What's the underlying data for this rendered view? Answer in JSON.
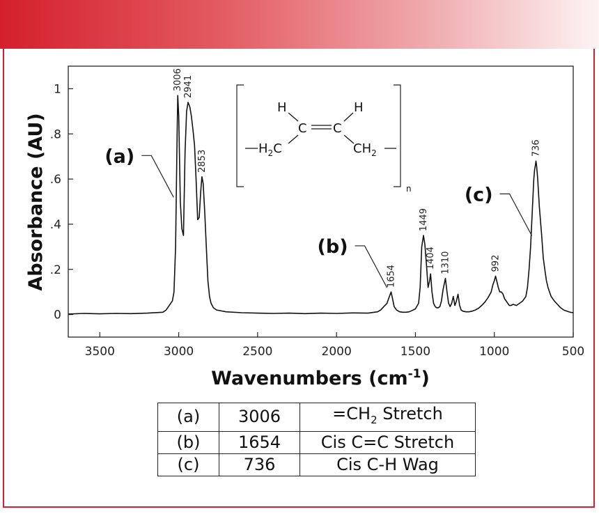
{
  "chart_data": {
    "type": "line",
    "xlabel_main": "Wavenumbers (cm",
    "xlabel_sup": "-1",
    "xlabel_close": ")",
    "ylabel": "Absorbance (AU)",
    "xlim": [
      3700,
      500
    ],
    "ylim": [
      -0.1,
      1.1
    ],
    "x_reversed": true,
    "x_ticks": [
      3500,
      3000,
      2500,
      2000,
      1500,
      1000,
      500
    ],
    "y_ticks": [
      {
        "v": 0,
        "label": "0"
      },
      {
        "v": 0.2,
        "label": ".2"
      },
      {
        "v": 0.4,
        "label": ".4"
      },
      {
        "v": 0.6,
        "label": ".6"
      },
      {
        "v": 0.8,
        "label": ".8"
      },
      {
        "v": 1.0,
        "label": "1"
      }
    ],
    "grid": false,
    "series": [
      {
        "color": "#111111",
        "x": [
          3700,
          3600,
          3500,
          3400,
          3300,
          3200,
          3100,
          3080,
          3060,
          3040,
          3030,
          3020,
          3010,
          3006,
          3000,
          2990,
          2980,
          2970,
          2960,
          2950,
          2941,
          2930,
          2920,
          2910,
          2900,
          2890,
          2880,
          2870,
          2860,
          2853,
          2845,
          2835,
          2825,
          2815,
          2805,
          2795,
          2780,
          2760,
          2700,
          2600,
          2500,
          2400,
          2300,
          2200,
          2100,
          2000,
          1900,
          1800,
          1740,
          1720,
          1700,
          1680,
          1670,
          1654,
          1645,
          1635,
          1620,
          1600,
          1580,
          1560,
          1540,
          1520,
          1500,
          1480,
          1470,
          1460,
          1449,
          1440,
          1430,
          1420,
          1410,
          1404,
          1395,
          1385,
          1375,
          1365,
          1355,
          1345,
          1335,
          1325,
          1310,
          1300,
          1290,
          1280,
          1270,
          1260,
          1250,
          1240,
          1230,
          1220,
          1210,
          1200,
          1180,
          1160,
          1140,
          1120,
          1100,
          1080,
          1060,
          1040,
          1020,
          1010,
          1000,
          992,
          985,
          975,
          965,
          955,
          945,
          935,
          925,
          915,
          905,
          895,
          880,
          860,
          840,
          820,
          800,
          790,
          780,
          770,
          760,
          750,
          745,
          740,
          736,
          732,
          725,
          715,
          700,
          690,
          680,
          670,
          660,
          650,
          640,
          620,
          600,
          580,
          560,
          540,
          520,
          500
        ],
        "y": [
          0.002,
          0.005,
          0.003,
          0.005,
          0.004,
          0.006,
          0.01,
          0.02,
          0.04,
          0.06,
          0.1,
          0.3,
          0.8,
          0.97,
          0.88,
          0.5,
          0.38,
          0.35,
          0.72,
          0.9,
          0.94,
          0.92,
          0.88,
          0.82,
          0.75,
          0.6,
          0.42,
          0.43,
          0.55,
          0.61,
          0.58,
          0.45,
          0.3,
          0.15,
          0.08,
          0.05,
          0.03,
          0.02,
          0.012,
          0.008,
          0.006,
          0.005,
          0.006,
          0.004,
          0.006,
          0.005,
          0.007,
          0.006,
          0.012,
          0.02,
          0.035,
          0.05,
          0.07,
          0.1,
          0.07,
          0.035,
          0.02,
          0.012,
          0.01,
          0.01,
          0.012,
          0.018,
          0.025,
          0.05,
          0.12,
          0.3,
          0.35,
          0.31,
          0.22,
          0.12,
          0.15,
          0.18,
          0.1,
          0.05,
          0.035,
          0.03,
          0.03,
          0.035,
          0.06,
          0.11,
          0.16,
          0.1,
          0.05,
          0.035,
          0.05,
          0.08,
          0.04,
          0.06,
          0.09,
          0.04,
          0.02,
          0.015,
          0.012,
          0.012,
          0.015,
          0.02,
          0.028,
          0.04,
          0.055,
          0.075,
          0.1,
          0.13,
          0.15,
          0.17,
          0.15,
          0.12,
          0.1,
          0.1,
          0.09,
          0.07,
          0.06,
          0.05,
          0.04,
          0.04,
          0.045,
          0.04,
          0.05,
          0.06,
          0.08,
          0.12,
          0.2,
          0.3,
          0.45,
          0.6,
          0.64,
          0.66,
          0.68,
          0.66,
          0.6,
          0.48,
          0.35,
          0.25,
          0.2,
          0.15,
          0.12,
          0.1,
          0.08,
          0.06,
          0.045,
          0.03,
          0.02,
          0.015,
          0.01,
          0.008
        ]
      }
    ],
    "peak_labels": [
      {
        "x": 3006,
        "y": 0.97,
        "label": "3006"
      },
      {
        "x": 2941,
        "y": 0.94,
        "label": "2941"
      },
      {
        "x": 2853,
        "y": 0.61,
        "label": "2853"
      },
      {
        "x": 1654,
        "y": 0.1,
        "label": "1654"
      },
      {
        "x": 1449,
        "y": 0.35,
        "label": "1449"
      },
      {
        "x": 1404,
        "y": 0.18,
        "label": "1404"
      },
      {
        "x": 1310,
        "y": 0.16,
        "label": "1310"
      },
      {
        "x": 992,
        "y": 0.17,
        "label": "992"
      },
      {
        "x": 736,
        "y": 0.68,
        "label": "736"
      }
    ],
    "callouts": [
      {
        "label": "(a)",
        "x": 3006,
        "y": 0.55
      },
      {
        "label": "(b)",
        "x": 1654,
        "y": 0.15
      },
      {
        "label": "(c)",
        "x": 736,
        "y": 0.38
      }
    ],
    "structure": {
      "h_left": "H",
      "h_right": "H",
      "c_left": "C",
      "c_right": "C",
      "h2c_main": "H",
      "h2c_sub": "2",
      "h2c_c": "C",
      "ch2_main": "CH",
      "ch2_sub": "2",
      "subscript_n": "n"
    }
  },
  "table": {
    "rows": [
      {
        "key": "(a)",
        "value": "3006",
        "desc_main": "=CH",
        "desc_sub": "2",
        "desc_rest": " Stretch"
      },
      {
        "key": "(b)",
        "value": "1654",
        "desc_main": "Cis C=C Stretch",
        "desc_sub": "",
        "desc_rest": ""
      },
      {
        "key": "(c)",
        "value": "736",
        "desc_main": "Cis C-H Wag",
        "desc_sub": "",
        "desc_rest": ""
      }
    ]
  }
}
